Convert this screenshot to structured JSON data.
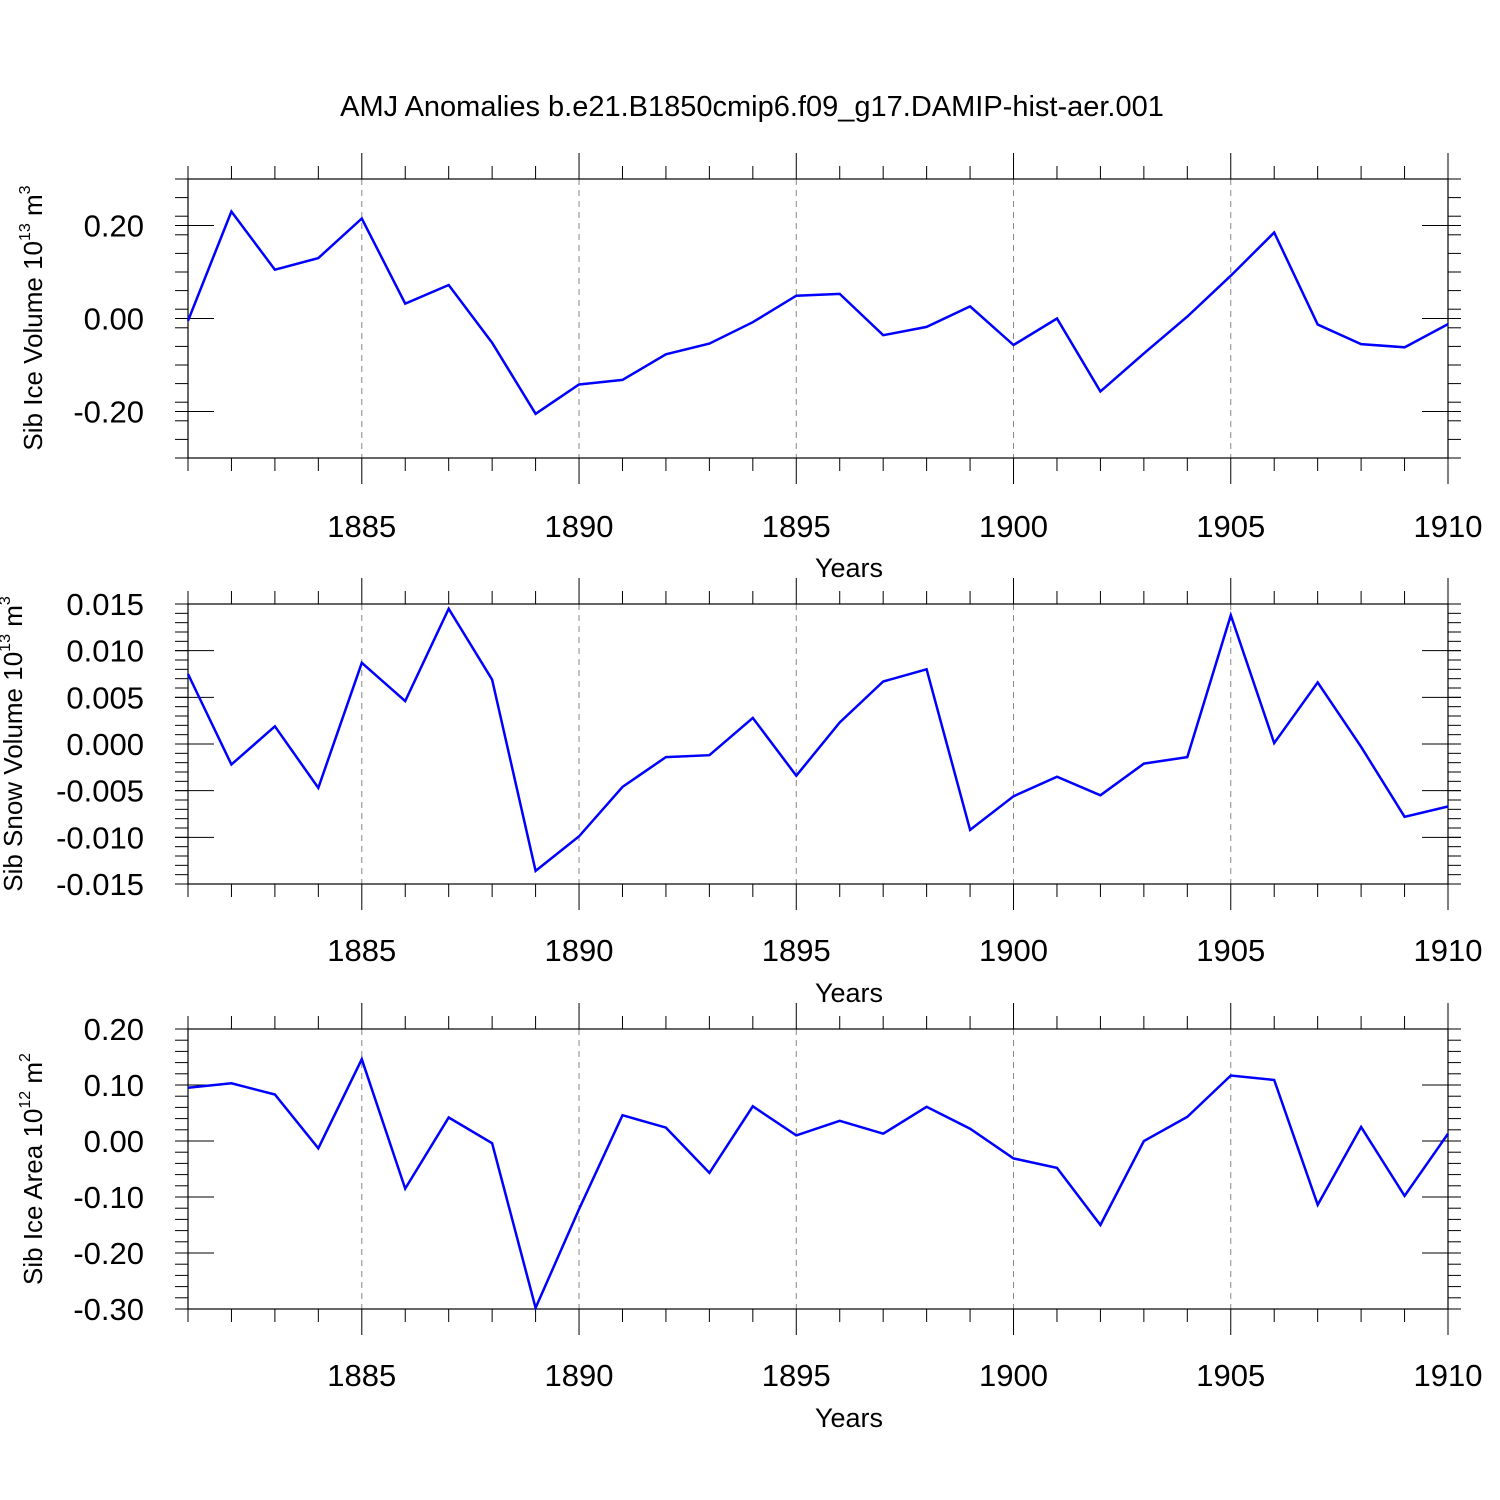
{
  "title": "AMJ Anomalies b.e21.B1850cmip6.f09_g17.DAMIP-hist-aer.001",
  "chart_data": [
    {
      "type": "line",
      "id": "ice-volume",
      "ylabel_main": "Sib Ice Volume 10",
      "ylabel_exp": "13",
      "ylabel_unit": " m",
      "ylabel_unit_exp": "3",
      "xlabel": "Years",
      "xlim": [
        1881,
        1910
      ],
      "ylim": [
        -0.3,
        0.3
      ],
      "x_ticks": [
        "1885",
        "1890",
        "1895",
        "1900",
        "1905",
        "1910"
      ],
      "y_ticks": [
        "0.20",
        "0.00",
        "-0.20"
      ],
      "y_tick_values": [
        0.2,
        0.0,
        -0.2
      ],
      "color": "#0000ff",
      "x": [
        1881,
        1882,
        1883,
        1884,
        1885,
        1886,
        1887,
        1888,
        1889,
        1890,
        1891,
        1892,
        1893,
        1894,
        1895,
        1896,
        1897,
        1898,
        1899,
        1900,
        1901,
        1902,
        1903,
        1904,
        1905,
        1906,
        1907,
        1908,
        1909,
        1910
      ],
      "values": [
        -0.005,
        0.23,
        0.105,
        0.13,
        0.215,
        0.032,
        0.072,
        -0.052,
        -0.205,
        -0.142,
        -0.132,
        -0.077,
        -0.054,
        -0.008,
        0.049,
        0.053,
        -0.036,
        -0.018,
        0.026,
        -0.057,
        0.0,
        -0.157,
        -0.075,
        0.004,
        0.092,
        0.185,
        -0.013,
        -0.055,
        -0.062,
        -0.012
      ]
    },
    {
      "type": "line",
      "id": "snow-volume",
      "ylabel_main": "Sib Snow Volume 10",
      "ylabel_exp": "13",
      "ylabel_unit": " m",
      "ylabel_unit_exp": "3",
      "xlabel": "Years",
      "xlim": [
        1881,
        1910
      ],
      "ylim": [
        -0.015,
        0.015
      ],
      "x_ticks": [
        "1885",
        "1890",
        "1895",
        "1900",
        "1905",
        "1910"
      ],
      "y_ticks": [
        "0.015",
        "0.010",
        "0.005",
        "0.000",
        "-0.005",
        "-0.010",
        "-0.015"
      ],
      "y_tick_values": [
        0.015,
        0.01,
        0.005,
        0.0,
        -0.005,
        -0.01,
        -0.015
      ],
      "color": "#0000ff",
      "x": [
        1881,
        1882,
        1883,
        1884,
        1885,
        1886,
        1887,
        1888,
        1889,
        1890,
        1891,
        1892,
        1893,
        1894,
        1895,
        1896,
        1897,
        1898,
        1899,
        1900,
        1901,
        1902,
        1903,
        1904,
        1905,
        1906,
        1907,
        1908,
        1909,
        1910
      ],
      "values": [
        0.0075,
        -0.0022,
        0.0019,
        -0.0047,
        0.0087,
        0.0046,
        0.0145,
        0.0069,
        -0.0136,
        -0.0099,
        -0.0046,
        -0.0014,
        -0.0012,
        0.0028,
        -0.0034,
        0.0023,
        0.0067,
        0.008,
        -0.0092,
        -0.0056,
        -0.0035,
        -0.0055,
        -0.0021,
        -0.0014,
        0.0138,
        0.0001,
        0.0066,
        -0.0003,
        -0.0078,
        -0.0067
      ]
    },
    {
      "type": "line",
      "id": "ice-area",
      "ylabel_main": "Sib Ice Area 10",
      "ylabel_exp": "12",
      "ylabel_unit": " m",
      "ylabel_unit_exp": "2",
      "xlabel": "Years",
      "xlim": [
        1881,
        1910
      ],
      "ylim": [
        -0.3,
        0.2
      ],
      "x_ticks": [
        "1885",
        "1890",
        "1895",
        "1900",
        "1905",
        "1910"
      ],
      "y_ticks": [
        "0.20",
        "0.10",
        "0.00",
        "-0.10",
        "-0.20",
        "-0.30"
      ],
      "y_tick_values": [
        0.2,
        0.1,
        0.0,
        -0.1,
        -0.2,
        -0.3
      ],
      "color": "#0000ff",
      "x": [
        1881,
        1882,
        1883,
        1884,
        1885,
        1886,
        1887,
        1888,
        1889,
        1890,
        1891,
        1892,
        1893,
        1894,
        1895,
        1896,
        1897,
        1898,
        1899,
        1900,
        1901,
        1902,
        1903,
        1904,
        1905,
        1906,
        1907,
        1908,
        1909,
        1910
      ],
      "values": [
        0.095,
        0.103,
        0.083,
        -0.013,
        0.146,
        -0.085,
        0.042,
        -0.004,
        -0.298,
        -0.122,
        0.046,
        0.024,
        -0.057,
        0.062,
        0.01,
        0.036,
        0.013,
        0.061,
        0.022,
        -0.031,
        -0.048,
        -0.15,
        0.0,
        0.043,
        0.117,
        0.109,
        -0.114,
        0.025,
        -0.098,
        0.013
      ]
    }
  ]
}
